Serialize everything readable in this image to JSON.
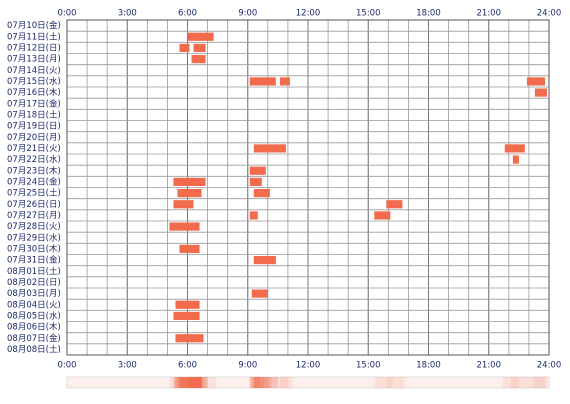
{
  "chart_data": {
    "type": "timeline",
    "color": "#f26b4c",
    "xlim": [
      0,
      24
    ],
    "xticks": [
      {
        "value": 0,
        "label": "0:00"
      },
      {
        "value": 3,
        "label": "3:00"
      },
      {
        "value": 6,
        "label": "6:00"
      },
      {
        "value": 9,
        "label": "9:00"
      },
      {
        "value": 12,
        "label": "12:00"
      },
      {
        "value": 15,
        "label": "15:00"
      },
      {
        "value": 18,
        "label": "18:00"
      },
      {
        "value": 21,
        "label": "21:00"
      },
      {
        "value": 24,
        "label": "24:00"
      }
    ],
    "categories": [
      "07月10日(金)",
      "07月11日(土)",
      "07月12日(日)",
      "07月13日(月)",
      "07月14日(火)",
      "07月15日(水)",
      "07月16日(木)",
      "07月17日(金)",
      "07月18日(土)",
      "07月19日(日)",
      "07月20日(月)",
      "07月21日(火)",
      "07月22日(水)",
      "07月23日(木)",
      "07月24日(金)",
      "07月25日(土)",
      "07月26日(日)",
      "07月27日(月)",
      "07月28日(火)",
      "07月29日(水)",
      "07月30日(木)",
      "07月31日(金)",
      "08月01日(土)",
      "08月02日(日)",
      "08月03日(月)",
      "08月04日(火)",
      "08月05日(水)",
      "08月06日(木)",
      "08月07日(金)",
      "08月08日(土)"
    ],
    "segments": [
      [],
      [
        [
          6.0,
          7.3
        ]
      ],
      [
        [
          5.6,
          6.1
        ],
        [
          6.3,
          6.9
        ]
      ],
      [
        [
          6.2,
          6.9
        ]
      ],
      [],
      [
        [
          9.1,
          10.4
        ],
        [
          10.6,
          11.1
        ],
        [
          22.9,
          23.8
        ]
      ],
      [
        [
          23.3,
          23.9
        ]
      ],
      [],
      [],
      [],
      [],
      [
        [
          9.3,
          10.9
        ],
        [
          21.8,
          22.8
        ]
      ],
      [
        [
          22.2,
          22.5
        ]
      ],
      [
        [
          9.1,
          9.9
        ]
      ],
      [
        [
          5.3,
          6.9
        ],
        [
          9.1,
          9.7
        ]
      ],
      [
        [
          5.5,
          6.7
        ],
        [
          9.3,
          10.1
        ]
      ],
      [
        [
          5.3,
          6.3
        ],
        [
          15.9,
          16.7
        ]
      ],
      [
        [
          9.1,
          9.5
        ],
        [
          15.3,
          16.1
        ]
      ],
      [
        [
          5.1,
          6.6
        ]
      ],
      [],
      [
        [
          5.6,
          6.6
        ]
      ],
      [
        [
          9.3,
          10.4
        ]
      ],
      [],
      [],
      [
        [
          9.2,
          10.0
        ]
      ],
      [
        [
          5.4,
          6.6
        ]
      ],
      [
        [
          5.3,
          6.6
        ]
      ],
      [],
      [
        [
          5.4,
          6.8
        ]
      ],
      []
    ]
  }
}
